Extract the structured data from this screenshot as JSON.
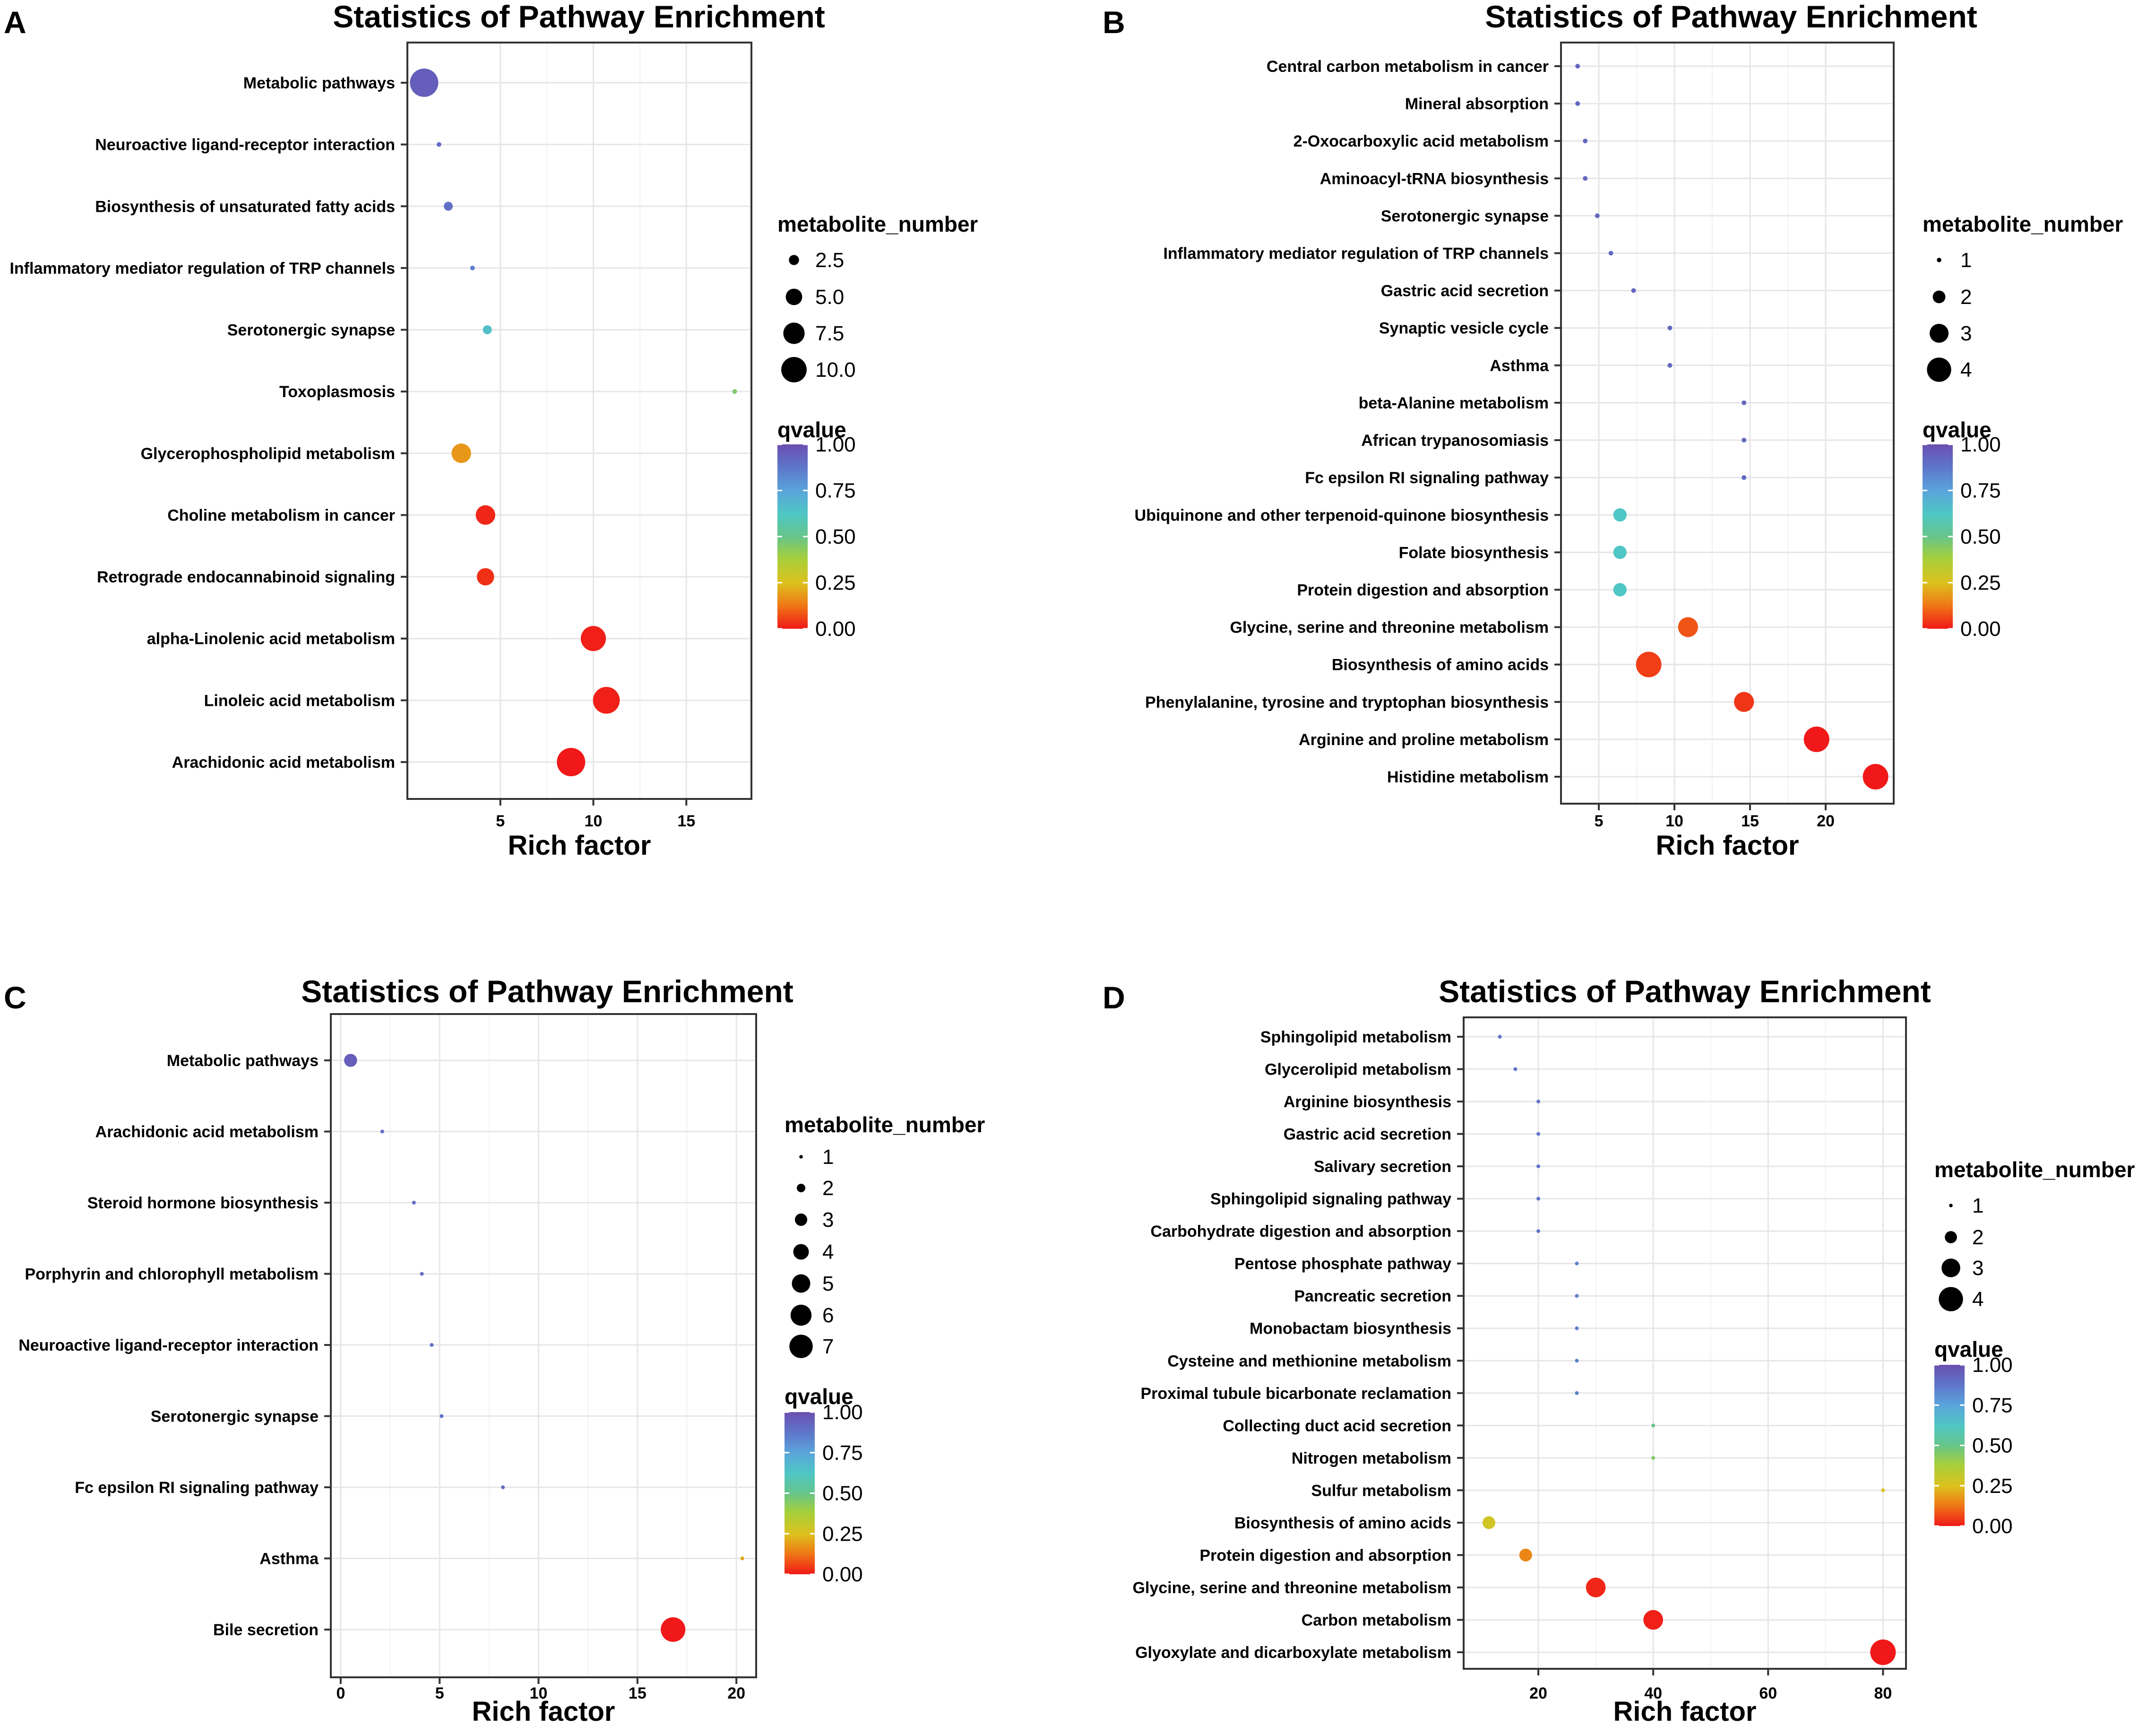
{
  "chart_data": [
    {
      "panel": "A",
      "type": "scatter",
      "title": "Statistics of Pathway Enrichment",
      "xlabel": "Rich factor",
      "ylabel": "",
      "xlim": [
        0,
        18.5
      ],
      "xticks": [
        5,
        10,
        15
      ],
      "grid": true,
      "categories": [
        "Metabolic pathways",
        "Neuroactive ligand-receptor interaction",
        "Biosynthesis of unsaturated fatty acids",
        "Inflammatory mediator regulation of TRP channels",
        "Serotonergic synapse",
        "Toxoplasmosis",
        "Glycerophospholipid metabolism",
        "Choline metabolism in cancer",
        "Retrograde endocannabinoid signaling",
        "alpha-Linolenic acid metabolism",
        "Linoleic acid metabolism",
        "Arachidonic acid metabolism"
      ],
      "rich_factor": [
        0.9,
        1.7,
        2.2,
        3.5,
        4.3,
        17.6,
        2.9,
        4.2,
        4.2,
        10.0,
        10.7,
        8.8
      ],
      "metabolite_number": [
        11,
        1,
        2,
        1,
        2,
        1,
        6,
        6,
        5,
        9,
        10,
        11
      ],
      "qvalue": [
        0.95,
        0.9,
        0.9,
        0.85,
        0.65,
        0.45,
        0.18,
        0.02,
        0.03,
        0.01,
        0.01,
        0.0
      ],
      "size_legend": {
        "title": "metabolite_number",
        "labels": [
          "2.5",
          "5.0",
          "7.5",
          "10.0"
        ],
        "values": [
          2.5,
          5.0,
          7.5,
          10.0
        ]
      },
      "color_legend": {
        "title": "qvalue",
        "labels": [
          "1.00",
          "0.75",
          "0.50",
          "0.25",
          "0.00"
        ]
      },
      "size_min_value": 1,
      "size_max_value": 11
    },
    {
      "panel": "B",
      "type": "scatter",
      "title": "Statistics of Pathway Enrichment",
      "xlabel": "Rich factor",
      "ylabel": "",
      "xlim": [
        2.5,
        24.5
      ],
      "xticks": [
        5,
        10,
        15,
        20
      ],
      "grid": true,
      "categories": [
        "Central carbon metabolism in cancer",
        "Mineral absorption",
        "2-Oxocarboxylic acid metabolism",
        "Aminoacyl-tRNA biosynthesis",
        "Serotonergic synapse",
        "Inflammatory mediator regulation of TRP channels",
        "Gastric acid secretion",
        "Synaptic vesicle cycle",
        "Asthma",
        "beta-Alanine metabolism",
        "African trypanosomiasis",
        "Fc epsilon RI signaling pathway",
        "Ubiquinone and other terpenoid-quinone biosynthesis",
        "Folate biosynthesis",
        "Protein digestion and absorption",
        "Glycine, serine and threonine metabolism",
        "Biosynthesis of amino acids",
        "Phenylalanine, tyrosine and tryptophan biosynthesis",
        "Arginine and proline metabolism",
        "Histidine metabolism"
      ],
      "rich_factor": [
        3.6,
        3.6,
        4.1,
        4.1,
        4.9,
        5.8,
        7.3,
        9.7,
        9.7,
        14.6,
        14.6,
        14.6,
        6.4,
        6.4,
        6.4,
        10.9,
        8.3,
        14.6,
        19.4,
        23.3
      ],
      "metabolite_number": [
        1,
        1,
        1,
        1,
        1,
        1,
        1,
        1,
        1,
        1,
        1,
        1,
        2,
        2,
        2,
        3,
        4,
        3,
        4,
        4
      ],
      "qvalue": [
        0.92,
        0.92,
        0.92,
        0.92,
        0.92,
        0.92,
        0.92,
        0.92,
        0.92,
        0.92,
        0.92,
        0.92,
        0.62,
        0.62,
        0.62,
        0.08,
        0.05,
        0.04,
        0.0,
        0.0
      ],
      "size_legend": {
        "title": "metabolite_number",
        "labels": [
          "1",
          "2",
          "3",
          "4"
        ],
        "values": [
          1,
          2,
          3,
          4
        ]
      },
      "color_legend": {
        "title": "qvalue",
        "labels": [
          "1.00",
          "0.75",
          "0.50",
          "0.25",
          "0.00"
        ]
      },
      "size_min_value": 1,
      "size_max_value": 4
    },
    {
      "panel": "C",
      "type": "scatter",
      "title": "Statistics of Pathway Enrichment",
      "xlabel": "Rich factor",
      "ylabel": "",
      "xlim": [
        -0.5,
        21.0
      ],
      "xticks": [
        0,
        5,
        10,
        15,
        20
      ],
      "grid": true,
      "categories": [
        "Metabolic pathways",
        "Arachidonic acid metabolism",
        "Steroid hormone biosynthesis",
        "Porphyrin and chlorophyll metabolism",
        "Neuroactive ligand-receptor interaction",
        "Serotonergic synapse",
        "Fc epsilon RI signaling pathway",
        "Asthma",
        "Bile secretion"
      ],
      "rich_factor": [
        0.5,
        2.1,
        3.7,
        4.1,
        4.6,
        5.1,
        8.2,
        20.3,
        16.8
      ],
      "metabolite_number": [
        3,
        1,
        1,
        1,
        1,
        1,
        1,
        1,
        7
      ],
      "qvalue": [
        0.95,
        0.9,
        0.9,
        0.9,
        0.9,
        0.9,
        0.9,
        0.2,
        0.0
      ],
      "size_legend": {
        "title": "metabolite_number",
        "labels": [
          "1",
          "2",
          "3",
          "4",
          "5",
          "6",
          "7"
        ],
        "values": [
          1,
          2,
          3,
          4,
          5,
          6,
          7
        ]
      },
      "color_legend": {
        "title": "qvalue",
        "labels": [
          "1.00",
          "0.75",
          "0.50",
          "0.25",
          "0.00"
        ]
      },
      "size_min_value": 1,
      "size_max_value": 7
    },
    {
      "panel": "D",
      "type": "scatter",
      "title": "Statistics of Pathway Enrichment",
      "xlabel": "Rich factor",
      "ylabel": "",
      "xlim": [
        7,
        84
      ],
      "xticks": [
        20,
        40,
        60,
        80
      ],
      "grid": true,
      "categories": [
        "Sphingolipid metabolism",
        "Glycerolipid metabolism",
        "Arginine biosynthesis",
        "Gastric acid secretion",
        "Salivary secretion",
        "Sphingolipid signaling pathway",
        "Carbohydrate digestion and absorption",
        "Pentose phosphate pathway",
        "Pancreatic secretion",
        "Monobactam biosynthesis",
        "Cysteine and methionine metabolism",
        "Proximal tubule bicarbonate reclamation",
        "Collecting duct acid secretion",
        "Nitrogen metabolism",
        "Sulfur metabolism",
        "Biosynthesis of amino acids",
        "Protein digestion and absorption",
        "Glycine, serine and threonine metabolism",
        "Carbon metabolism",
        "Glyoxylate and dicarboxylate metabolism"
      ],
      "rich_factor": [
        13.3,
        16.0,
        20.0,
        20.0,
        20.0,
        20.0,
        20.0,
        26.7,
        26.7,
        26.7,
        26.7,
        26.7,
        40.0,
        40.0,
        80.0,
        11.4,
        17.8,
        30.0,
        40.0,
        80.0
      ],
      "metabolite_number": [
        1,
        1,
        1,
        1,
        1,
        1,
        1,
        1,
        1,
        1,
        1,
        1,
        1,
        1,
        1,
        2,
        2,
        3,
        3,
        4
      ],
      "qvalue": [
        0.88,
        0.88,
        0.88,
        0.88,
        0.88,
        0.88,
        0.88,
        0.85,
        0.85,
        0.85,
        0.85,
        0.85,
        0.5,
        0.45,
        0.25,
        0.28,
        0.15,
        0.02,
        0.01,
        0.0
      ],
      "size_legend": {
        "title": "metabolite_number",
        "labels": [
          "1",
          "2",
          "3",
          "4"
        ],
        "values": [
          1,
          2,
          3,
          4
        ]
      },
      "color_legend": {
        "title": "qvalue",
        "labels": [
          "1.00",
          "0.75",
          "0.50",
          "0.25",
          "0.00"
        ]
      },
      "size_min_value": 1,
      "size_max_value": 4
    }
  ]
}
